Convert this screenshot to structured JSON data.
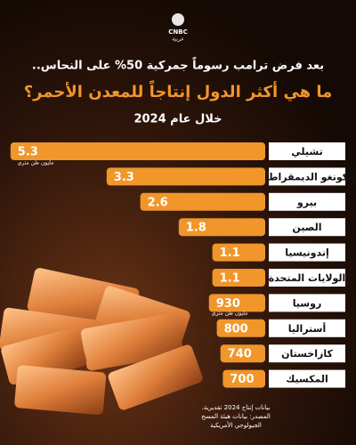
{
  "logo": {
    "name": "CNBC",
    "sub": "عربية"
  },
  "chart_data": {
    "type": "bar",
    "title": "بعد فرض ترامب رسوماً جمركية 50% على النحاس..",
    "subtitle": "ما هي أكثر الدول إنتاجاً للمعدن الأحمر؟",
    "period": "خلال عام 2024",
    "color": "#f0962a",
    "groups": [
      {
        "unit": "مليون طن متري",
        "categories": [
          "تشيلي",
          "الكونغو الديمقراطية",
          "بيرو",
          "الصين",
          "إندونيسيا",
          "الولايات المتحدة"
        ],
        "values": [
          5.3,
          3.3,
          2.6,
          1.8,
          1.1,
          1.1
        ]
      },
      {
        "unit": "مليون طن متري",
        "categories": [
          "روسيا",
          "أستراليا",
          "كازاخستان",
          "المكسيك"
        ],
        "values": [
          930,
          800,
          740,
          700
        ]
      }
    ],
    "footer": [
      "بيانات إنتاج 2024 تقديرية.",
      "المصدر: بيانات هيئة المسح",
      "الجيولوجي الأمريكية"
    ]
  }
}
